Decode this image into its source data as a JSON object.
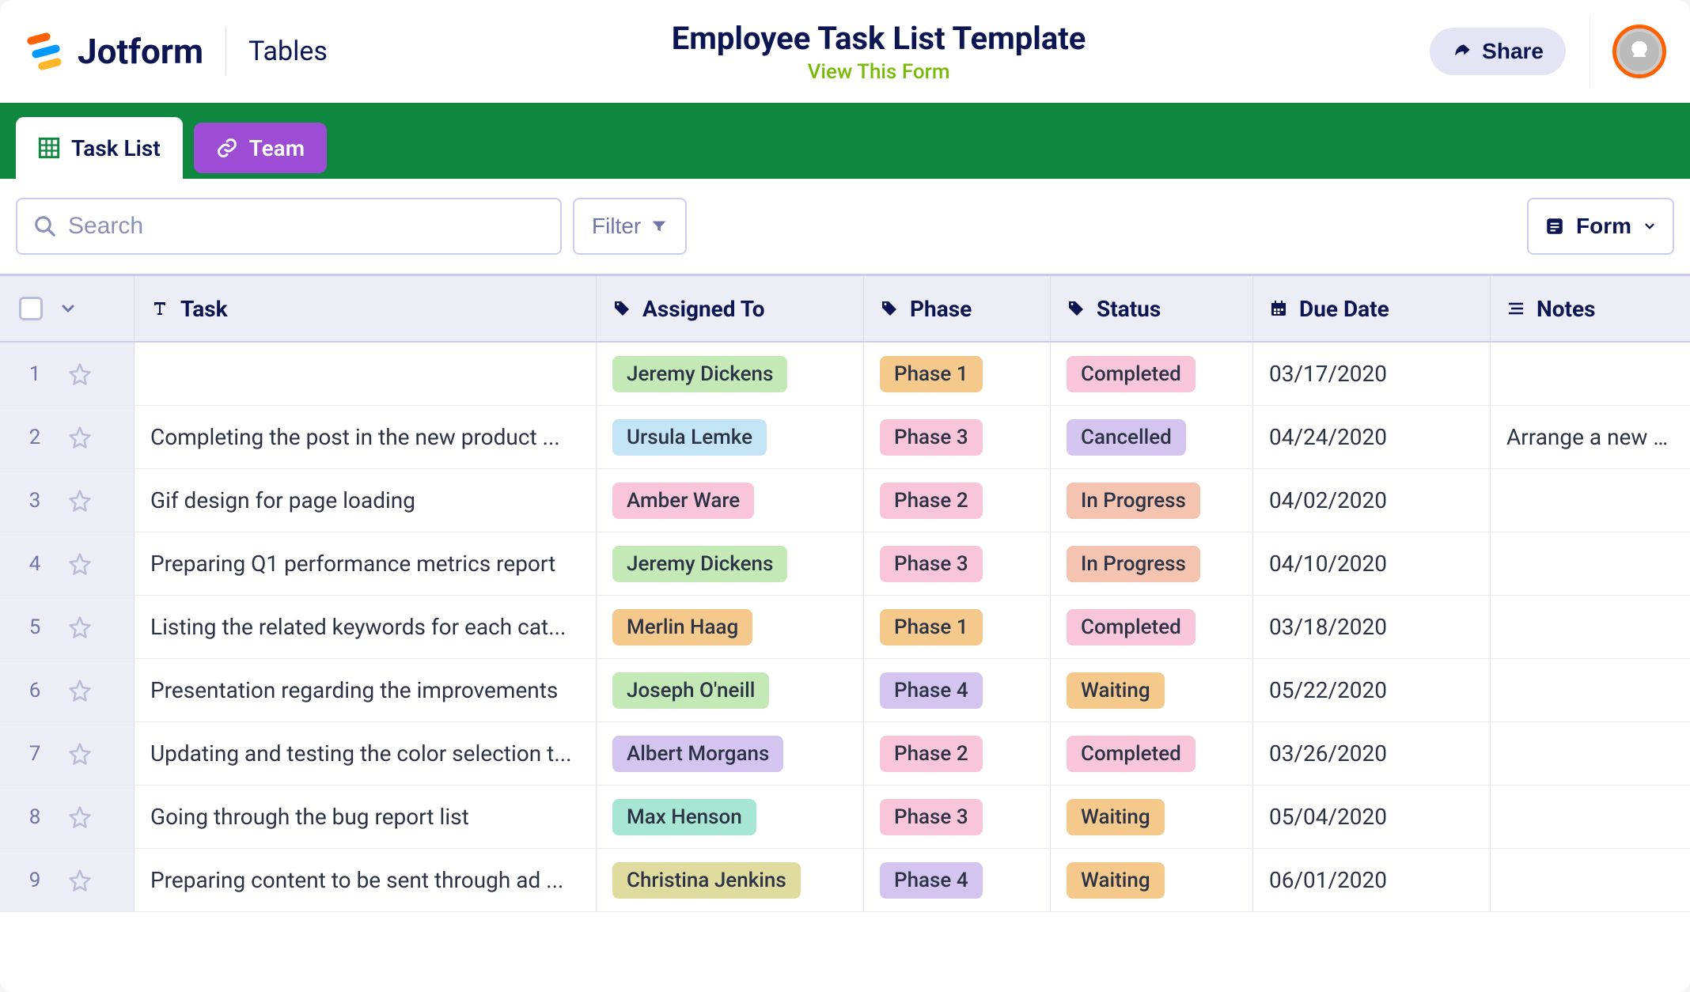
{
  "header": {
    "brand": "Jotform",
    "product": "Tables",
    "title": "Employee Task List Template",
    "viewFormLabel": "View This Form",
    "shareLabel": "Share"
  },
  "colors": {
    "headerGreen": "#0f873e",
    "tabPurple": "#9c4dd3",
    "accentOrange": "#ff6100",
    "formGreen": "#78bb07",
    "navy": "#0a1551"
  },
  "tabs": [
    {
      "label": "Task List",
      "active": true,
      "icon": "grid"
    },
    {
      "label": "Team",
      "active": false,
      "icon": "link"
    }
  ],
  "toolbar": {
    "searchPlaceholder": "Search",
    "filterLabel": "Filter",
    "formLabel": "Form"
  },
  "columns": [
    {
      "key": "task",
      "label": "Task",
      "icon": "text"
    },
    {
      "key": "assigned",
      "label": "Assigned To",
      "icon": "tag"
    },
    {
      "key": "phase",
      "label": "Phase",
      "icon": "tag"
    },
    {
      "key": "status",
      "label": "Status",
      "icon": "tag"
    },
    {
      "key": "date",
      "label": "Due Date",
      "icon": "calendar"
    },
    {
      "key": "notes",
      "label": "Notes",
      "icon": "notes"
    }
  ],
  "tagColors": {
    "assigned": {
      "Jeremy Dickens": "#c5e8b7",
      "Ursula Lemke": "#c3e4f5",
      "Amber Ware": "#f9c6d9",
      "Merlin Haag": "#f5c88c",
      "Joseph O'neill": "#c5e8b7",
      "Albert Morgans": "#d4c5f0",
      "Max Henson": "#a8e6d4",
      "Christina Jenkins": "#e0dca0"
    },
    "phase": {
      "Phase 1": "#f5c88c",
      "Phase 2": "#f9c6d9",
      "Phase 3": "#f9c6d9",
      "Phase 4": "#d4c5f0"
    },
    "status": {
      "Completed": "#f9c6d9",
      "Cancelled": "#d4c5f0",
      "In Progress": "#f5c4b0",
      "Waiting": "#f5c88c"
    }
  },
  "rows": [
    {
      "num": 1,
      "task": "",
      "assigned": "Jeremy Dickens",
      "phase": "Phase 1",
      "status": "Completed",
      "date": "03/17/2020",
      "notes": ""
    },
    {
      "num": 2,
      "task": "Completing the post in the new product ...",
      "assigned": "Ursula Lemke",
      "phase": "Phase 3",
      "status": "Cancelled",
      "date": "04/24/2020",
      "notes": "Arrange a new on"
    },
    {
      "num": 3,
      "task": "Gif design for page loading",
      "assigned": "Amber Ware",
      "phase": "Phase 2",
      "status": "In Progress",
      "date": "04/02/2020",
      "notes": ""
    },
    {
      "num": 4,
      "task": "Preparing Q1 performance metrics report",
      "assigned": "Jeremy Dickens",
      "phase": "Phase 3",
      "status": "In Progress",
      "date": "04/10/2020",
      "notes": ""
    },
    {
      "num": 5,
      "task": "Listing the related keywords for each cat...",
      "assigned": "Merlin Haag",
      "phase": "Phase 1",
      "status": "Completed",
      "date": "03/18/2020",
      "notes": ""
    },
    {
      "num": 6,
      "task": "Presentation regarding the improvements",
      "assigned": "Joseph O'neill",
      "phase": "Phase 4",
      "status": "Waiting",
      "date": "05/22/2020",
      "notes": ""
    },
    {
      "num": 7,
      "task": "Updating and testing the color selection t...",
      "assigned": "Albert Morgans",
      "phase": "Phase 2",
      "status": "Completed",
      "date": "03/26/2020",
      "notes": ""
    },
    {
      "num": 8,
      "task": "Going through the bug report list",
      "assigned": "Max Henson",
      "phase": "Phase 3",
      "status": "Waiting",
      "date": "05/04/2020",
      "notes": ""
    },
    {
      "num": 9,
      "task": "Preparing content to be sent through ad ...",
      "assigned": "Christina Jenkins",
      "phase": "Phase 4",
      "status": "Waiting",
      "date": "06/01/2020",
      "notes": ""
    }
  ]
}
